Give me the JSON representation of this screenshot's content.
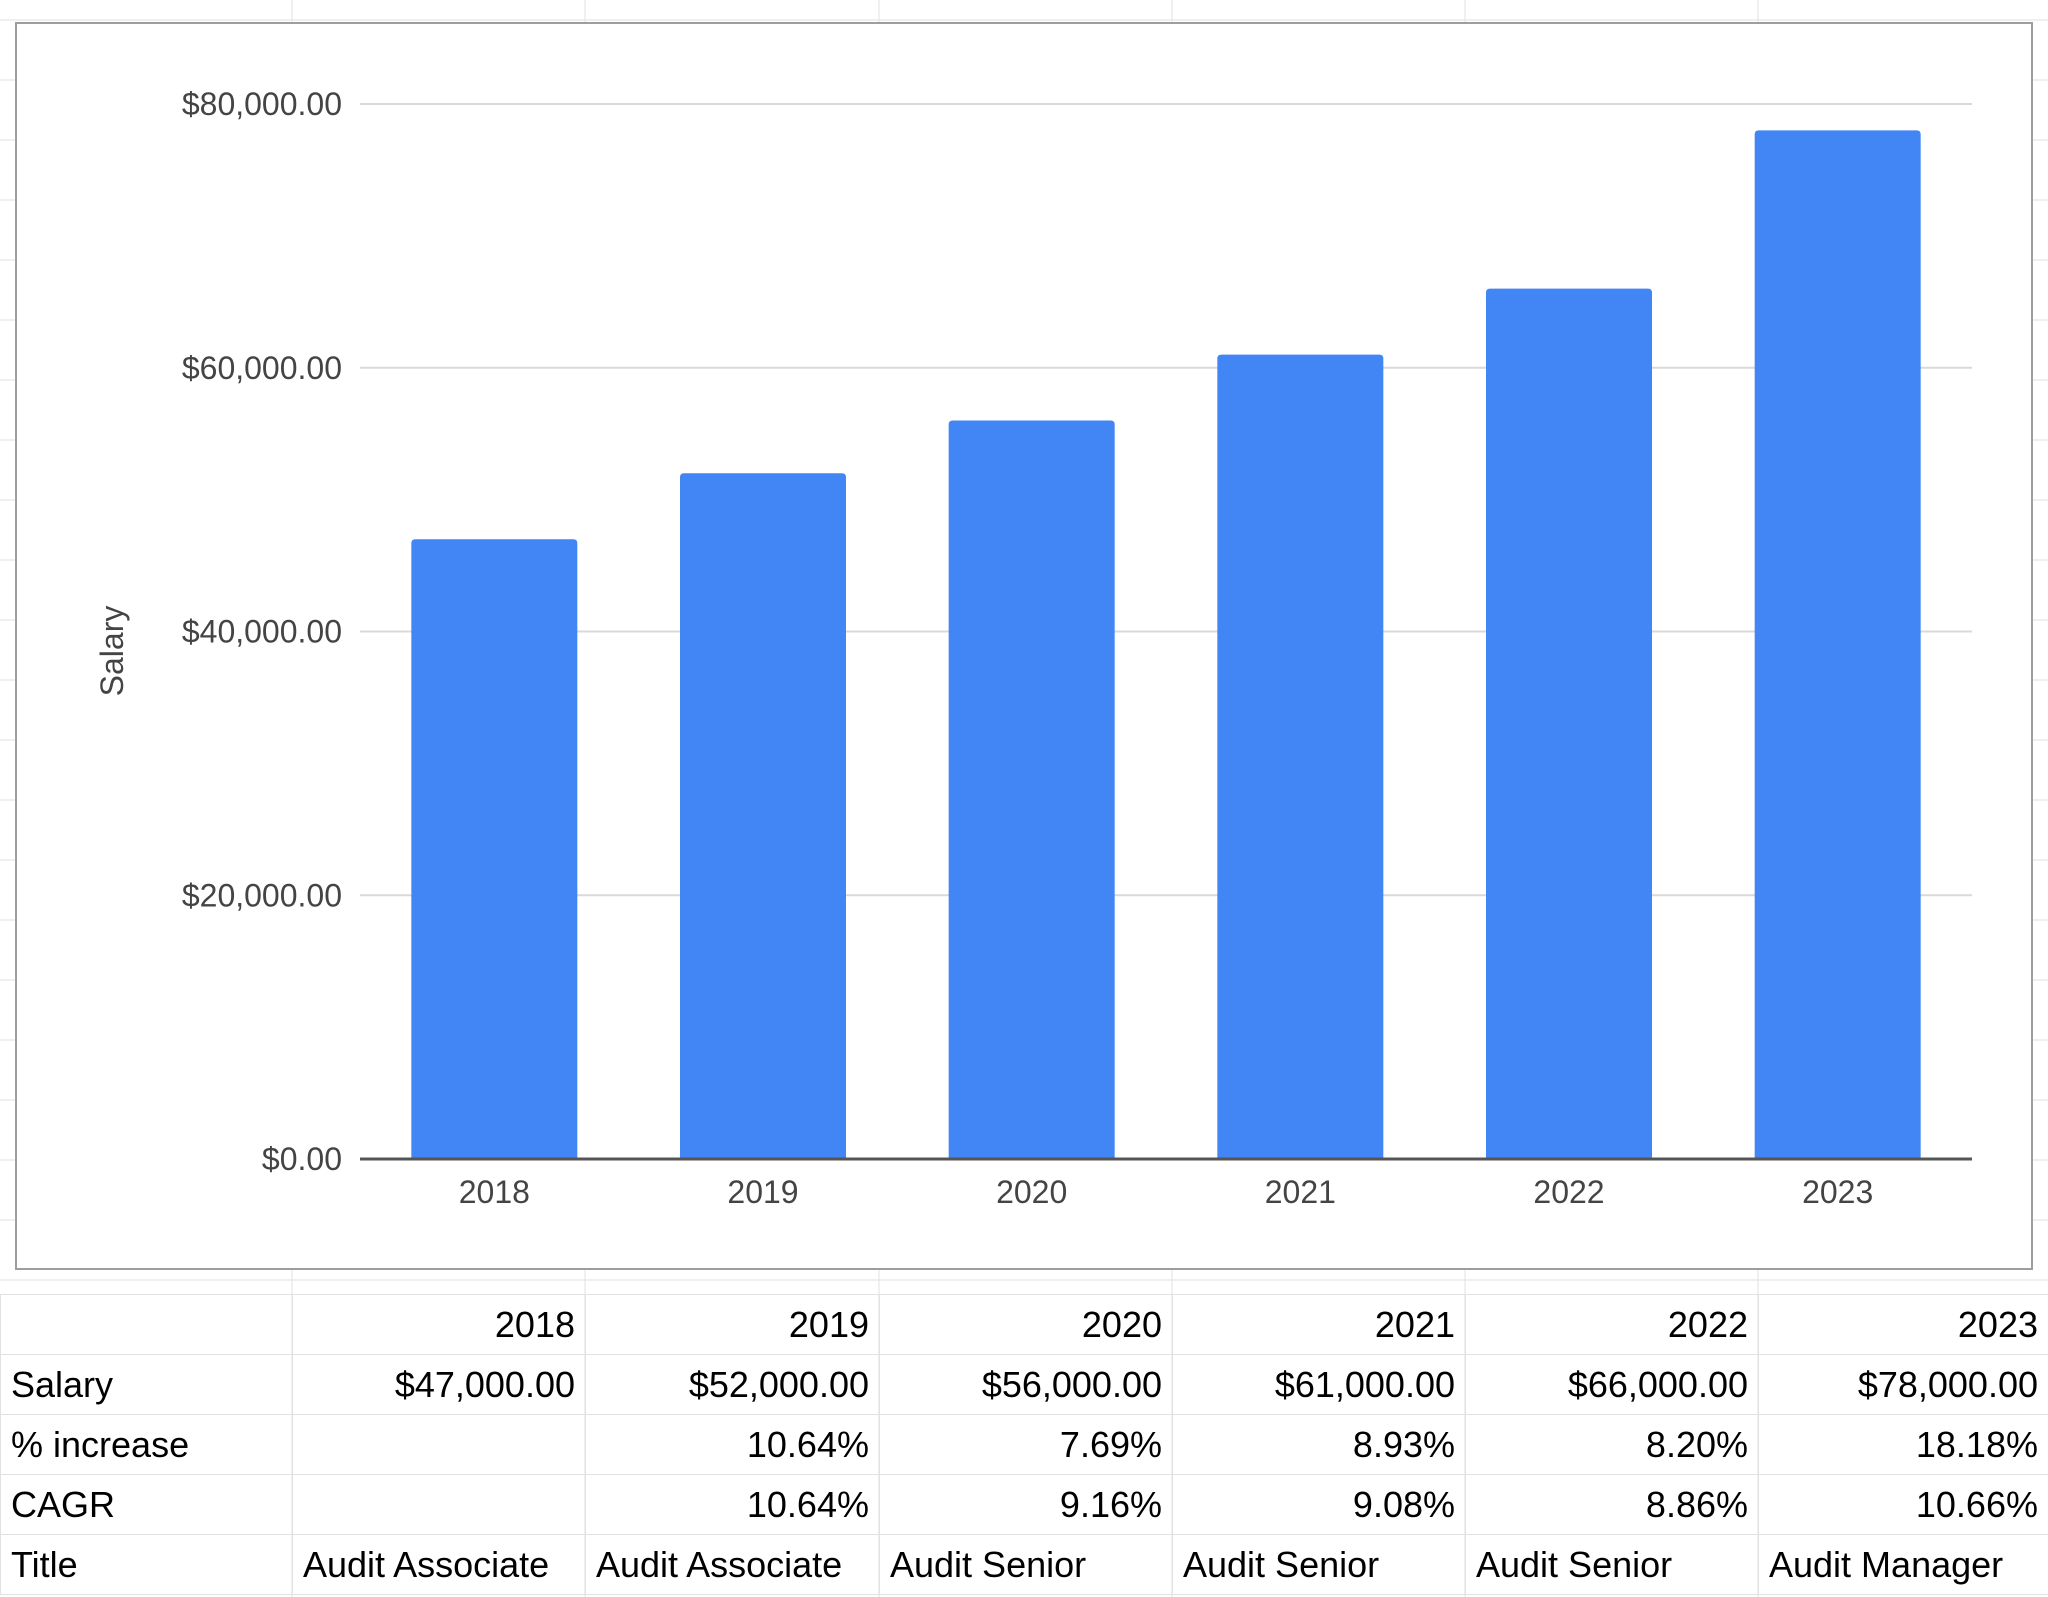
{
  "chart_data": {
    "type": "bar",
    "categories": [
      "2018",
      "2019",
      "2020",
      "2021",
      "2022",
      "2023"
    ],
    "values": [
      47000,
      52000,
      56000,
      61000,
      66000,
      78000
    ],
    "title": "",
    "xlabel": "",
    "ylabel": "Salary",
    "ylim": [
      0,
      80000
    ],
    "yticks": [
      0,
      20000,
      40000,
      60000,
      80000
    ],
    "ytick_labels": [
      "$0.00",
      "$20,000.00",
      "$40,000.00",
      "$60,000.00",
      "$80,000.00"
    ],
    "grid": true,
    "legend": "none",
    "bar_color": "#4285f4",
    "grid_color": "#d9d9d9",
    "axis_color": "#555555"
  },
  "table": {
    "header": [
      "",
      "2018",
      "2019",
      "2020",
      "2021",
      "2022",
      "2023"
    ],
    "rows": [
      {
        "label": "Salary",
        "align": "num",
        "cells": [
          "$47,000.00",
          "$52,000.00",
          "$56,000.00",
          "$61,000.00",
          "$66,000.00",
          "$78,000.00"
        ]
      },
      {
        "label": "% increase",
        "align": "num",
        "cells": [
          "",
          "10.64%",
          "7.69%",
          "8.93%",
          "8.20%",
          "18.18%"
        ]
      },
      {
        "label": "CAGR",
        "align": "num",
        "cells": [
          "",
          "10.64%",
          "9.16%",
          "9.08%",
          "8.86%",
          "10.66%"
        ]
      },
      {
        "label": "Title",
        "align": "text",
        "cells": [
          "Audit Associate",
          "Audit Associate",
          "Audit Senior",
          "Audit Senior",
          "Audit Senior",
          "Audit Manager"
        ]
      }
    ]
  }
}
